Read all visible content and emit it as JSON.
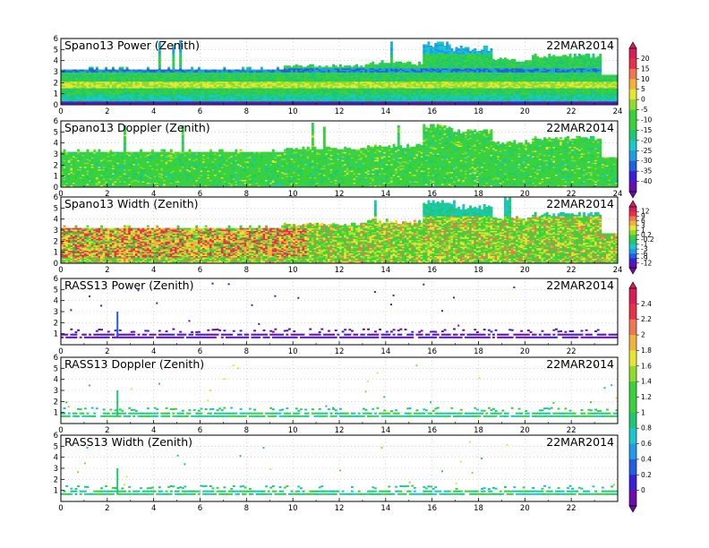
{
  "chart_data": [
    {
      "type": "heatmap",
      "title": "Spano13 Power (Zenith)",
      "date": "22MAR2014",
      "x_ticks": [
        "0",
        "2",
        "4",
        "6",
        "8",
        "10",
        "12",
        "14",
        "16",
        "18",
        "20",
        "22",
        "24"
      ],
      "y_ticks": [
        "0",
        "1",
        "2",
        "3",
        "4",
        "5",
        "6"
      ],
      "xlim": [
        0,
        24
      ],
      "ylim": [
        0,
        6
      ],
      "grid": true,
      "colorbar": [
        "20",
        "15",
        "10",
        "5",
        "0",
        "-5",
        "-10",
        "-15",
        "-20",
        "-25",
        "-30",
        "-35",
        "-40"
      ],
      "vmin": -40,
      "vmax": 20,
      "pattern": "profiler-power"
    },
    {
      "type": "heatmap",
      "title": "Spano13 Doppler (Zenith)",
      "date": "22MAR2014",
      "x_ticks": [
        "0",
        "2",
        "4",
        "6",
        "8",
        "10",
        "12",
        "14",
        "16",
        "18",
        "20",
        "22",
        "24"
      ],
      "y_ticks": [
        "0",
        "1",
        "2",
        "3",
        "4",
        "5",
        "6"
      ],
      "xlim": [
        0,
        24
      ],
      "ylim": [
        0,
        6
      ],
      "grid": true,
      "pattern": "profiler-doppler"
    },
    {
      "type": "heatmap",
      "title": "Spano13 Width (Zenith)",
      "date": "22MAR2014",
      "x_ticks": [
        "0",
        "2",
        "4",
        "6",
        "8",
        "10",
        "12",
        "14",
        "16",
        "18",
        "20",
        "22",
        "24"
      ],
      "y_ticks": [
        "0",
        "1",
        "2",
        "3",
        "4",
        "5",
        "6"
      ],
      "xlim": [
        0,
        24
      ],
      "ylim": [
        0,
        6
      ],
      "grid": true,
      "colorbar": [
        "12",
        "9",
        "6",
        "3",
        "1",
        "0.2",
        "-0.2",
        "-1",
        "-3",
        "-6",
        "-9",
        "-12"
      ],
      "vmin": -12,
      "vmax": 12,
      "pattern": "profiler-width"
    },
    {
      "type": "heatmap",
      "title": "RASS13 Power (Zenith)",
      "date": "22MAR2014",
      "x_ticks": [
        "0",
        "2",
        "4",
        "6",
        "8",
        "10",
        "12",
        "14",
        "16",
        "18",
        "20",
        "22"
      ],
      "y_ticks": [
        "1",
        "2",
        "3",
        "4",
        "5",
        "6"
      ],
      "xlim": [
        0,
        24
      ],
      "ylim": [
        0,
        6
      ],
      "grid": true,
      "pattern": "rass-power"
    },
    {
      "type": "heatmap",
      "title": "RASS13 Doppler (Zenith)",
      "date": "22MAR2014",
      "x_ticks": [
        "0",
        "2",
        "4",
        "6",
        "8",
        "10",
        "12",
        "14",
        "16",
        "18",
        "20",
        "22"
      ],
      "y_ticks": [
        "1",
        "2",
        "3",
        "4",
        "5",
        "6"
      ],
      "xlim": [
        0,
        24
      ],
      "ylim": [
        0,
        6
      ],
      "grid": true,
      "colorbar": [
        "2.4",
        "2.2",
        "2",
        "1.8",
        "1.6",
        "1.4",
        "1.2",
        "1",
        "0.8",
        "0.6",
        "0.4",
        "0.2",
        "0"
      ],
      "vmin": 0,
      "vmax": 2.4,
      "pattern": "rass-doppler"
    },
    {
      "type": "heatmap",
      "title": "RASS13 Width (Zenith)",
      "date": "22MAR2014",
      "x_ticks": [
        "0",
        "2",
        "4",
        "6",
        "8",
        "10",
        "12",
        "14",
        "16",
        "18",
        "20",
        "22"
      ],
      "y_ticks": [
        "1",
        "2",
        "3",
        "4",
        "5",
        "6"
      ],
      "xlim": [
        0,
        24
      ],
      "ylim": [
        0,
        6
      ],
      "grid": true,
      "pattern": "rass-width"
    }
  ],
  "palette": [
    "#6a0dad",
    "#3a1fd6",
    "#1f5fe0",
    "#1f9be8",
    "#19c8c8",
    "#1ec872",
    "#3ad23a",
    "#8fdc2c",
    "#e6e632",
    "#f0b43c",
    "#f07850",
    "#e8304a",
    "#d81e5a"
  ],
  "colorbar_groups": [
    {
      "panels": [
        0,
        1
      ],
      "index": 0
    },
    {
      "panels": [
        2
      ],
      "index": 2
    },
    {
      "panels": [
        3,
        4,
        5
      ],
      "index": 4
    }
  ]
}
